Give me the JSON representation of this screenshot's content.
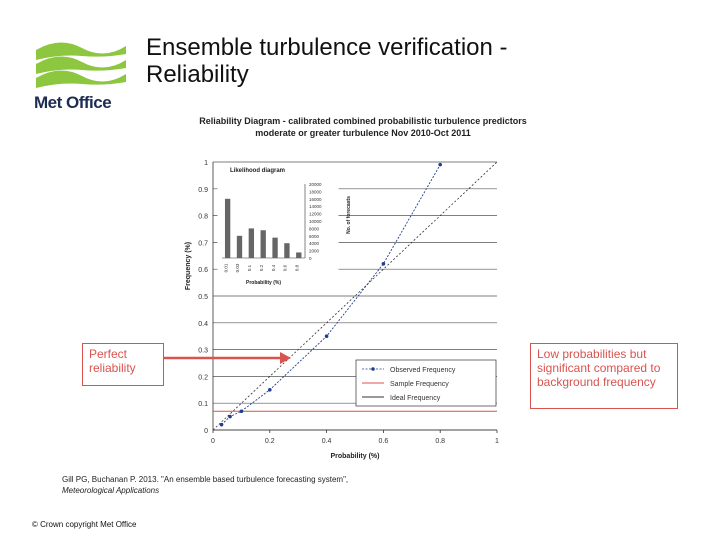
{
  "slide": {
    "title": "Ensemble turbulence verification - Reliability",
    "logo_text": "Met Office",
    "chart_title_line1": "Reliability Diagram - calibrated combined probabilistic turbulence predictors",
    "chart_title_line2": "moderate or greater turbulence Nov 2010-Oct 2011",
    "callout_left": "Perfect reliability",
    "callout_right": "Low probabilities but significant compared to background frequency",
    "citation_line1": "Gill PG, Buchanan P. 2013. \"An ensemble based turbulence forecasting system\",",
    "citation_line2": "Meteorological Applications",
    "copyright": "© Crown copyright   Met Office"
  },
  "colors": {
    "accent_red": "#d9534f",
    "logo_green": "#8dc63f",
    "logo_navy": "#1d2c52",
    "observed": "#1f3f8f"
  },
  "chart_data": {
    "type": "line",
    "xlabel": "Probability (%)",
    "ylabel": "Frequency (%)",
    "xlim": [
      0,
      1
    ],
    "ylim": [
      0,
      1
    ],
    "x_ticks": [
      "0",
      "0.2",
      "0.4",
      "0.6",
      "0.8",
      "1"
    ],
    "y_ticks": [
      "0",
      "0.1",
      "0.2",
      "0.3",
      "0.4",
      "0.5",
      "0.6",
      "0.7",
      "0.8",
      "0.9",
      "1"
    ],
    "grid": true,
    "legend_position": "bottom-right",
    "series": [
      {
        "name": "Observed Frequency",
        "style": "dotted-markers",
        "x": [
          0.03,
          0.06,
          0.1,
          0.2,
          0.4,
          0.6,
          0.8
        ],
        "y": [
          0.02,
          0.05,
          0.07,
          0.15,
          0.35,
          0.62,
          0.99
        ]
      },
      {
        "name": "Sample Frequency",
        "style": "red-horizontal",
        "x": [
          0,
          1
        ],
        "y": [
          0.07,
          0.07
        ]
      },
      {
        "name": "Ideal Frequency",
        "style": "dotted-diagonal",
        "x": [
          0,
          1
        ],
        "y": [
          0,
          1
        ]
      }
    ],
    "inset": {
      "title": "Likelihood diagram",
      "xlabel": "Probability (%)",
      "ylabel": "No. of forecasts",
      "categories": [
        "0.01",
        "0.03",
        "0.1",
        "0.2",
        "0.4",
        "0.6",
        "0.8"
      ],
      "values": [
        16000,
        6000,
        8000,
        7500,
        5500,
        4000,
        1500
      ],
      "y_ticks": [
        "0",
        "2000",
        "4000",
        "6000",
        "8000",
        "10000",
        "12000",
        "14000",
        "16000",
        "18000",
        "20000"
      ]
    }
  }
}
